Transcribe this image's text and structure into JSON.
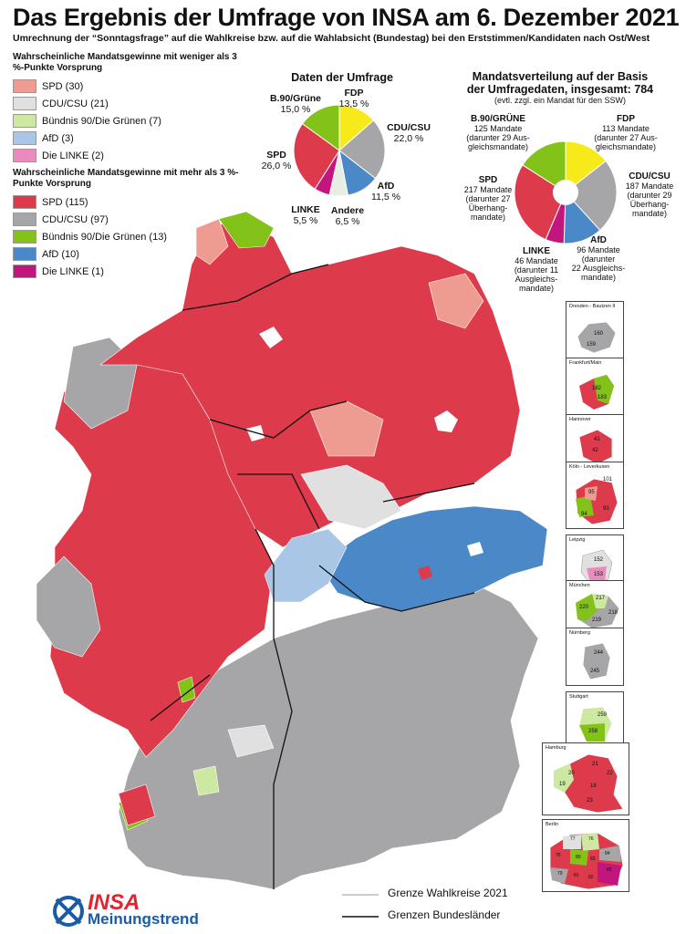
{
  "title": "Das Ergebnis der Umfrage von INSA am 6. Dezember 2021",
  "subtitle": "Umrechnung der “Sonntagsfrage” auf die Wahlkreise bzw. auf die Wahlabsicht (Bundestag) bei den Erststimmen/Kandidaten nach Ost/West",
  "colors": {
    "spd_strong": "#dd3a4b",
    "spd_weak": "#ee9c91",
    "cdu_strong": "#a6a5a8",
    "cdu_weak": "#e0e0e0",
    "gruene_strong": "#82c219",
    "gruene_weak": "#cde8a0",
    "afd_strong": "#4a88c7",
    "afd_weak": "#a9c6e6",
    "linke_strong": "#c3157e",
    "linke_weak": "#e98cbd",
    "fdp": "#f7ea1a",
    "andere": "#e7efe2"
  },
  "legend": {
    "weak_heading": "Wahrscheinliche Mandatsgewinne mit weniger als 3 %-Punkte Vorsprung",
    "weak_items": [
      {
        "label": "SPD (30)",
        "color": "#ee9c91"
      },
      {
        "label": "CDU/CSU (21)",
        "color": "#e0e0e0"
      },
      {
        "label": "Bündnis 90/Die Grünen (7)",
        "color": "#cde8a0"
      },
      {
        "label": "AfD (3)",
        "color": "#a9c6e6"
      },
      {
        "label": "Die LINKE (2)",
        "color": "#e98cbd"
      }
    ],
    "strong_heading": "Wahrscheinliche Mandatsgewinne mit mehr als 3 %-Punkte Vorsprung",
    "strong_items": [
      {
        "label": "SPD (115)",
        "color": "#dd3a4b"
      },
      {
        "label": "CDU/CSU (97)",
        "color": "#a6a5a8"
      },
      {
        "label": "Bündnis 90/Die Grünen (13)",
        "color": "#82c219"
      },
      {
        "label": "AfD (10)",
        "color": "#4a88c7"
      },
      {
        "label": "Die LINKE (1)",
        "color": "#c3157e"
      }
    ]
  },
  "survey": {
    "title": "Daten der Umfrage",
    "slices": [
      {
        "party": "FDP",
        "value": 13.5,
        "label": "13,5 %",
        "color": "#f7ea1a"
      },
      {
        "party": "CDU/CSU",
        "value": 22.0,
        "label": "22,0 %",
        "color": "#a6a5a8"
      },
      {
        "party": "AfD",
        "value": 11.5,
        "label": "11,5 %",
        "color": "#4a88c7"
      },
      {
        "party": "Andere",
        "value": 6.5,
        "label": "6,5 %",
        "color": "#e7efe2"
      },
      {
        "party": "LINKE",
        "value": 5.5,
        "label": "5,5 %",
        "color": "#c3157e"
      },
      {
        "party": "SPD",
        "value": 26.0,
        "label": "26,0 %",
        "color": "#dd3a4b"
      },
      {
        "party": "B.90/Grüne",
        "value": 15.0,
        "label": "15,0 %",
        "color": "#82c219"
      }
    ]
  },
  "seats": {
    "title_1": "Mandatsverteilung auf der Basis",
    "title_2": "der Umfragedaten, insgesamt: 784",
    "note": "(evtl. zzgl. ein Mandat für den SSW)",
    "slices": [
      {
        "party": "FDP",
        "value": 113,
        "color": "#f7ea1a",
        "text": [
          "113 Mandate",
          "(darunter 27 Aus-",
          "gleichsmandate)"
        ]
      },
      {
        "party": "CDU/CSU",
        "value": 187,
        "color": "#a6a5a8",
        "text": [
          "187 Mandate",
          "(darunter 29",
          "Überhang-",
          "mandate)"
        ]
      },
      {
        "party": "AfD",
        "value": 96,
        "color": "#4a88c7",
        "text": [
          "96 Mandate",
          "(darunter",
          "22 Ausgleichs-",
          "mandate)"
        ]
      },
      {
        "party": "LINKE",
        "value": 46,
        "color": "#c3157e",
        "text": [
          "46 Mandate",
          "(darunter 11",
          "Ausgleichs-",
          "mandate)"
        ]
      },
      {
        "party": "SPD",
        "value": 217,
        "color": "#dd3a4b",
        "text": [
          "217 Mandate",
          "(darunter 27",
          "Überhang-",
          "mandate)"
        ]
      },
      {
        "party": "B.90/GRÜNE",
        "value": 125,
        "color": "#82c219",
        "text": [
          "125 Mandate",
          "(darunter 29 Aus-",
          "gleichsmandate)"
        ]
      }
    ]
  },
  "insets": [
    {
      "name": "Dresden - Bautzen II",
      "numbers": [
        "160",
        "159"
      ]
    },
    {
      "name": "Frankfurt/Main",
      "numbers": [
        "182",
        "183"
      ]
    },
    {
      "name": "Hannover",
      "numbers": [
        "41",
        "42"
      ]
    },
    {
      "name": "Köln - Leverkusen",
      "numbers": [
        "101",
        "95",
        "93",
        "94"
      ]
    },
    {
      "name": "Leipzig",
      "numbers": [
        "152",
        "153"
      ]
    },
    {
      "name": "München",
      "numbers": [
        "217",
        "220",
        "218",
        "219"
      ]
    },
    {
      "name": "Nürnberg",
      "numbers": [
        "244",
        "245"
      ]
    },
    {
      "name": "Stuttgart",
      "numbers": [
        "259",
        "258"
      ]
    },
    {
      "name": "Hamburg",
      "numbers": [
        "21",
        "22",
        "20",
        "19",
        "18",
        "23"
      ]
    },
    {
      "name": "Berlin",
      "numbers": [
        "77",
        "76",
        "75",
        "84",
        "80",
        "83",
        "79",
        "85",
        "81",
        "82"
      ]
    }
  ],
  "map_legend": {
    "wahlkreise": "Grenze Wahlkreise 2021",
    "bundeslaender": "Grenzen Bundesländer"
  },
  "logo": {
    "brand": "INSA",
    "sub": "Meinungstrend"
  }
}
